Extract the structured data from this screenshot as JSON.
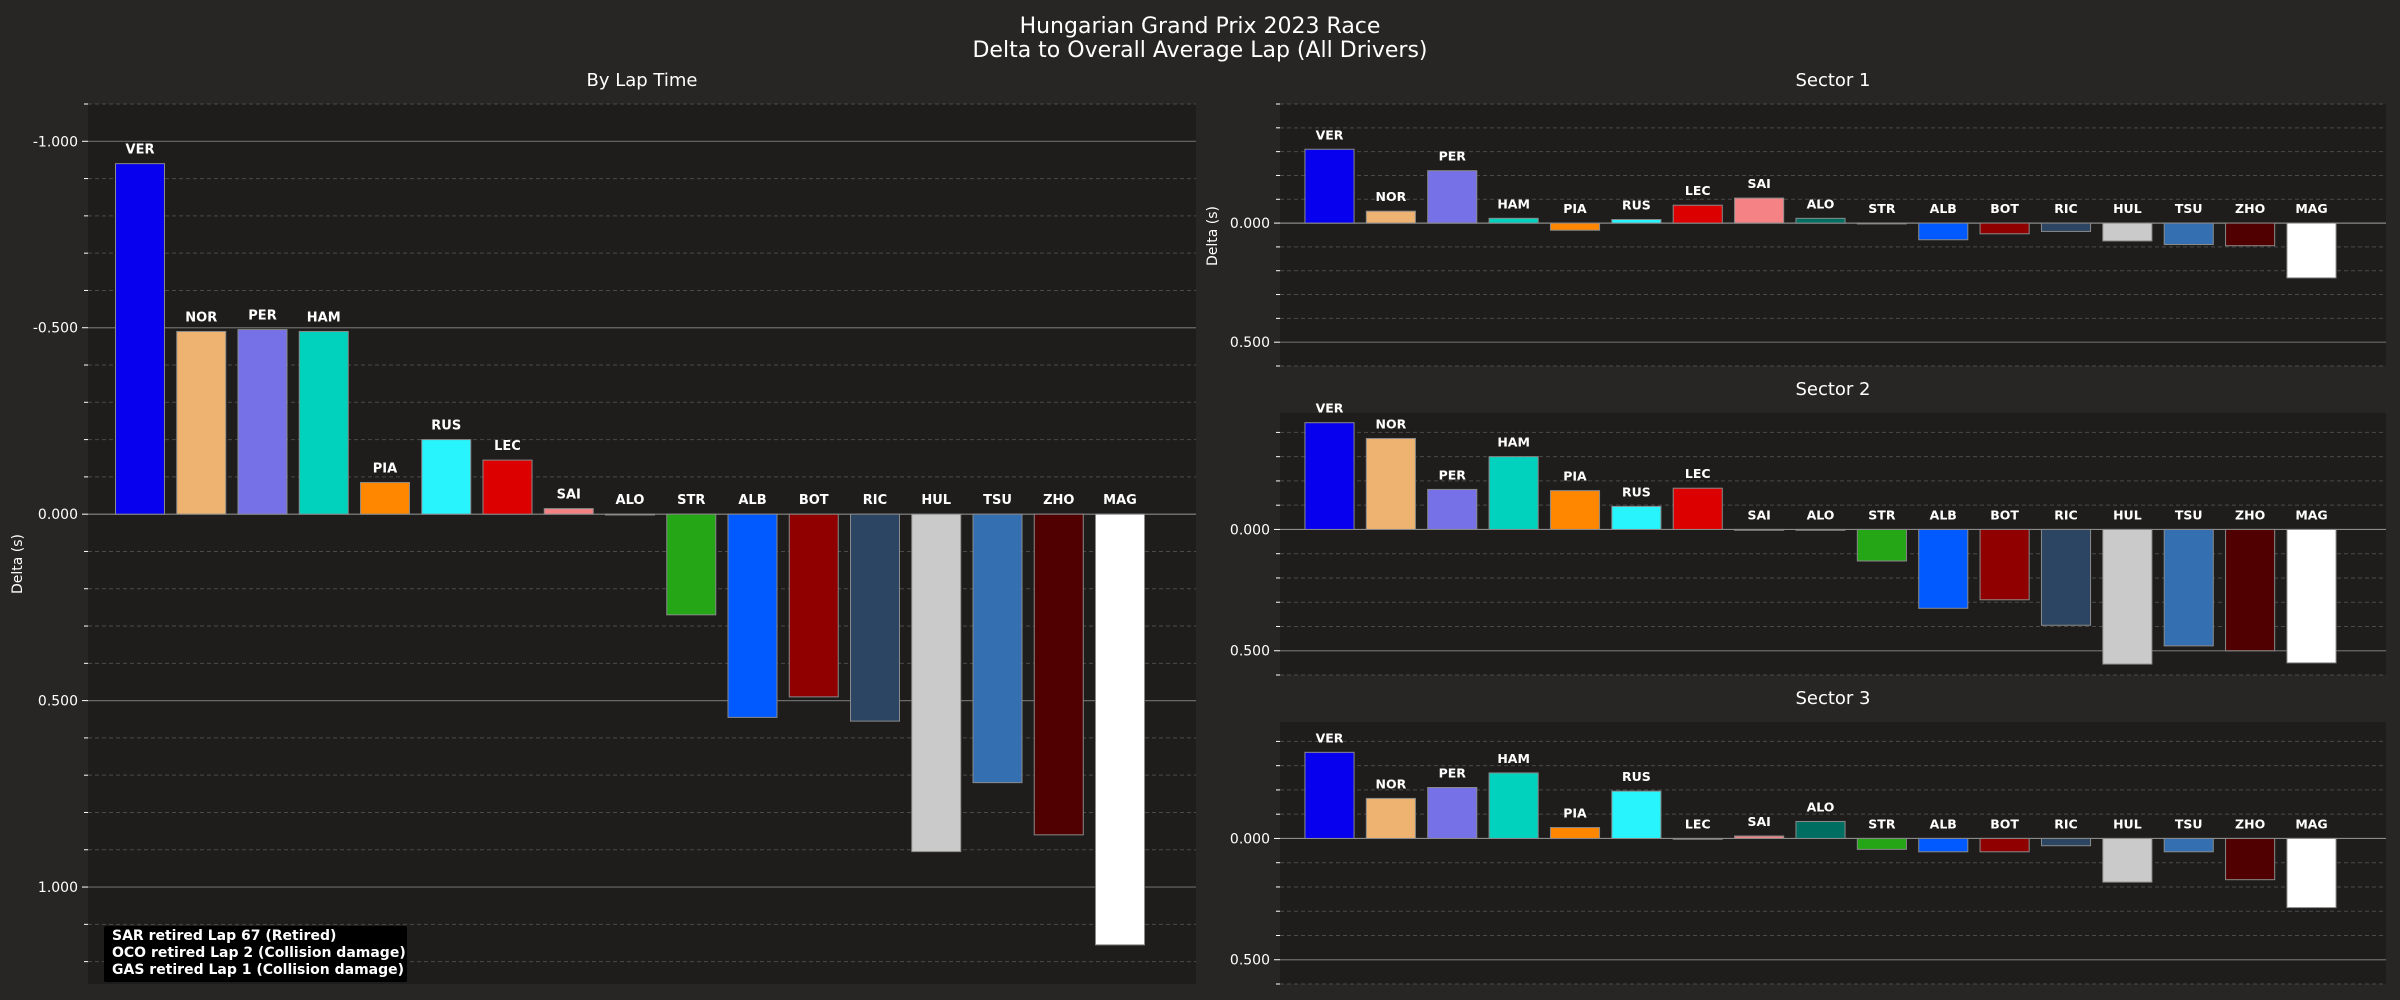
{
  "figure": {
    "title_line1": "Hungarian Grand Prix 2023 Race",
    "title_line2": "Delta to Overall Average Lap (All Drivers)"
  },
  "notes": [
    "SAR retired Lap 67 (Retired)",
    "OCO retired Lap 2 (Collision damage)",
    "GAS retired Lap 1 (Collision damage)"
  ],
  "colors": {
    "figure_bg": "#282624",
    "axes_bg": "#1e1d1c",
    "text": "#ffffff",
    "zero_line": "#8a8a8a",
    "grid_major": "#6a6a6a",
    "grid_minor": "#4a4a4a",
    "bar_edge": "#8a8a8a"
  },
  "chart_data": [
    {
      "type": "bar",
      "title": "By Lap Time",
      "ylabel": "Delta (s)",
      "inverted_y": true,
      "ylim": [
        -1.1,
        1.26
      ],
      "yticks": [
        -1.0,
        -0.5,
        0.0,
        0.5,
        1.0
      ],
      "ytick_labels": [
        "-1.000",
        "-0.500",
        "0.000",
        "0.500",
        "1.000"
      ],
      "grid": true,
      "categories": [
        "VER",
        "NOR",
        "PER",
        "HAM",
        "PIA",
        "RUS",
        "LEC",
        "SAI",
        "ALO",
        "STR",
        "ALB",
        "BOT",
        "RIC",
        "HUL",
        "TSU",
        "ZHO",
        "MAG"
      ],
      "colors": [
        "#0600ef",
        "#eeb370",
        "#7671e6",
        "#00d2be",
        "#ff8700",
        "#27f4fc",
        "#dc0000",
        "#f58385",
        "#006f62",
        "#25a617",
        "#005aff",
        "#900000",
        "#2b4562",
        "#cacaca",
        "#346fb1",
        "#500000",
        "#ffffff"
      ],
      "values": [
        -0.94,
        -0.49,
        -0.495,
        -0.49,
        -0.085,
        -0.2,
        -0.145,
        -0.015,
        0.0,
        0.27,
        0.545,
        0.49,
        0.555,
        0.905,
        0.72,
        0.86,
        1.155
      ]
    },
    {
      "type": "bar",
      "title": "Sector 1",
      "ylabel": "Delta (s)",
      "inverted_y": true,
      "ylim": [
        -0.5,
        0.6
      ],
      "yticks": [
        0.0,
        0.5
      ],
      "ytick_labels": [
        "0.000",
        "0.500"
      ],
      "grid": true,
      "categories": [
        "VER",
        "NOR",
        "PER",
        "HAM",
        "PIA",
        "RUS",
        "LEC",
        "SAI",
        "ALO",
        "STR",
        "ALB",
        "BOT",
        "RIC",
        "HUL",
        "TSU",
        "ZHO",
        "MAG"
      ],
      "colors": [
        "#0600ef",
        "#eeb370",
        "#7671e6",
        "#00d2be",
        "#ff8700",
        "#27f4fc",
        "#dc0000",
        "#f58385",
        "#006f62",
        "#25a617",
        "#005aff",
        "#900000",
        "#2b4562",
        "#cacaca",
        "#346fb1",
        "#500000",
        "#ffffff"
      ],
      "values": [
        -0.31,
        -0.05,
        -0.22,
        -0.02,
        0.03,
        -0.015,
        -0.075,
        -0.105,
        -0.02,
        0.0,
        0.07,
        0.045,
        0.035,
        0.075,
        0.09,
        0.095,
        0.23
      ]
    },
    {
      "type": "bar",
      "title": "Sector 2",
      "ylabel": "",
      "inverted_y": true,
      "ylim": [
        -0.48,
        0.6
      ],
      "yticks": [
        0.0,
        0.5
      ],
      "ytick_labels": [
        "0.000",
        "0.500"
      ],
      "grid": true,
      "categories": [
        "VER",
        "NOR",
        "PER",
        "HAM",
        "PIA",
        "RUS",
        "LEC",
        "SAI",
        "ALO",
        "STR",
        "ALB",
        "BOT",
        "RIC",
        "HUL",
        "TSU",
        "ZHO",
        "MAG"
      ],
      "colors": [
        "#0600ef",
        "#eeb370",
        "#7671e6",
        "#00d2be",
        "#ff8700",
        "#27f4fc",
        "#dc0000",
        "#f58385",
        "#006f62",
        "#25a617",
        "#005aff",
        "#900000",
        "#2b4562",
        "#cacaca",
        "#346fb1",
        "#500000",
        "#ffffff"
      ],
      "values": [
        -0.44,
        -0.375,
        -0.165,
        -0.3,
        -0.16,
        -0.095,
        -0.17,
        0.0,
        0.0,
        0.13,
        0.325,
        0.29,
        0.395,
        0.555,
        0.48,
        0.5,
        0.55
      ]
    },
    {
      "type": "bar",
      "title": "Sector 3",
      "ylabel": "",
      "inverted_y": true,
      "ylim": [
        -0.48,
        0.6
      ],
      "yticks": [
        0.0,
        0.5
      ],
      "ytick_labels": [
        "0.000",
        "0.500"
      ],
      "grid": true,
      "categories": [
        "VER",
        "NOR",
        "PER",
        "HAM",
        "PIA",
        "RUS",
        "LEC",
        "SAI",
        "ALO",
        "STR",
        "ALB",
        "BOT",
        "RIC",
        "HUL",
        "TSU",
        "ZHO",
        "MAG"
      ],
      "colors": [
        "#0600ef",
        "#eeb370",
        "#7671e6",
        "#00d2be",
        "#ff8700",
        "#27f4fc",
        "#dc0000",
        "#f58385",
        "#006f62",
        "#25a617",
        "#005aff",
        "#900000",
        "#2b4562",
        "#cacaca",
        "#346fb1",
        "#500000",
        "#ffffff"
      ],
      "values": [
        -0.355,
        -0.165,
        -0.21,
        -0.27,
        -0.045,
        -0.195,
        0.0,
        -0.01,
        -0.07,
        0.045,
        0.055,
        0.055,
        0.03,
        0.18,
        0.055,
        0.17,
        0.285
      ]
    }
  ]
}
